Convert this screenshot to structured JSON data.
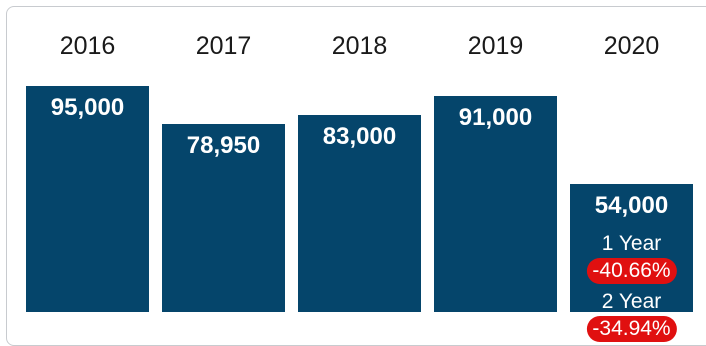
{
  "chart_data": {
    "type": "bar",
    "categories": [
      "2016",
      "2017",
      "2018",
      "2019",
      "2020"
    ],
    "values": [
      95000,
      78950,
      83000,
      91000,
      54000
    ],
    "value_labels": [
      "95,000",
      "78,950",
      "83,000",
      "91,000",
      "54,000"
    ],
    "title": "",
    "xlabel": "",
    "ylabel": "",
    "ylim": [
      0,
      95000
    ],
    "grid": false,
    "bar_color": "#05456b",
    "annotations": [
      {
        "label": "1 Year",
        "value": "-40.66%"
      },
      {
        "label": "2 Year",
        "value": "-34.94%"
      }
    ],
    "annotation_color": "#e01010"
  }
}
